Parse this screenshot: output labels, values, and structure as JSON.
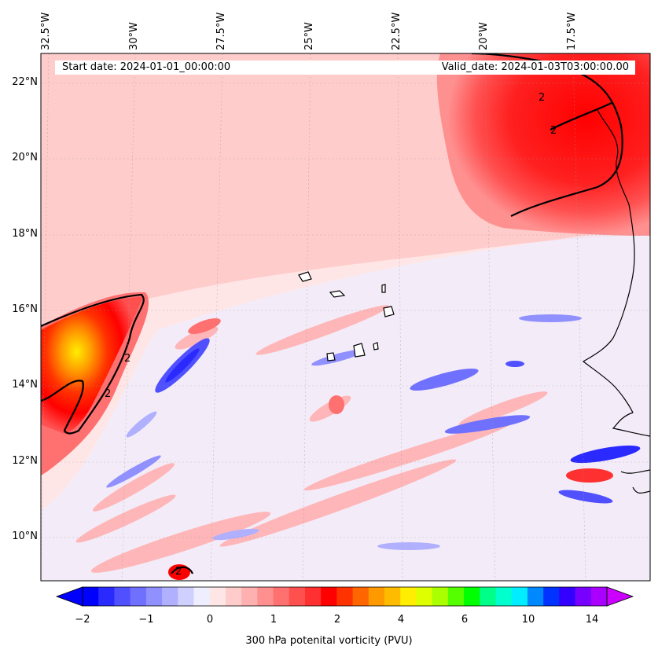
{
  "map": {
    "start_date": "Start date: 2024-01-01_00:00:00",
    "valid_date": "Valid_date: 2024-01-03T03:00:00.00",
    "lon_labels": [
      "32.5°W",
      "30°W",
      "27.5°W",
      "25°W",
      "22.5°W",
      "20°W",
      "17.5°W"
    ],
    "lat_labels": [
      "22°N",
      "20°N",
      "18°N",
      "16°N",
      "14°N",
      "12°N",
      "10°N"
    ],
    "contour_label": "2",
    "colorbar": {
      "title": "300 hPa potenital vorticity (PVU)",
      "tick_labels": [
        "−2",
        "−1",
        "0",
        "1",
        "2",
        "4",
        "6",
        "10",
        "14"
      ],
      "colors": [
        "#0000ff",
        "#2a2aff",
        "#5050ff",
        "#7070ff",
        "#9090ff",
        "#b0b0ff",
        "#d0d0ff",
        "#eeeeff",
        "#ffe6e6",
        "#ffcccc",
        "#ffb0b0",
        "#ff9090",
        "#ff7070",
        "#ff5050",
        "#ff3030",
        "#ff0000",
        "#ff3300",
        "#ff6600",
        "#ff9900",
        "#ffbb00",
        "#ffee00",
        "#ddff00",
        "#aaff00",
        "#55ff00",
        "#00ff00",
        "#00ff88",
        "#00ffcc",
        "#00eeff",
        "#0088ff",
        "#0033ff",
        "#3300ff",
        "#7700ff",
        "#aa00ff"
      ],
      "under_color": "#0000ff",
      "over_color": "#cc00ff"
    }
  }
}
